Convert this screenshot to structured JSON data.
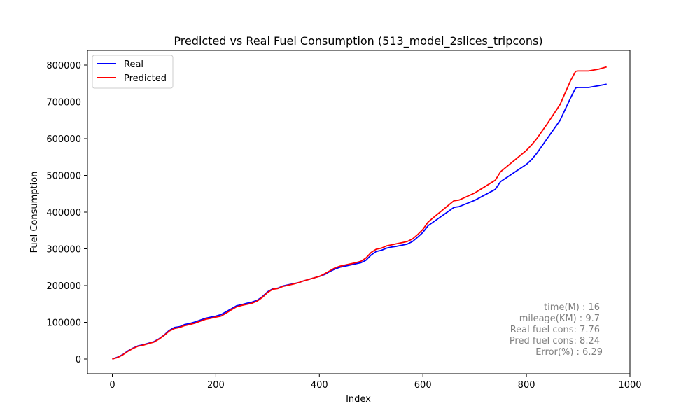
{
  "chart_data": {
    "type": "line",
    "title": "Predicted vs Real Fuel Consumption (513_model_2slices_tripcons)",
    "xlabel": "Index",
    "ylabel": "Fuel Consumption",
    "xlim": [
      -48,
      1000
    ],
    "ylim": [
      -40000,
      840000
    ],
    "x_ticks": [
      0,
      200,
      400,
      600,
      800,
      1000
    ],
    "y_ticks": [
      0,
      100000,
      200000,
      300000,
      400000,
      500000,
      600000,
      700000,
      800000
    ],
    "x_tick_labels": [
      "0",
      "200",
      "400",
      "600",
      "800",
      "1000"
    ],
    "y_tick_labels": [
      "0",
      "100000",
      "200000",
      "300000",
      "400000",
      "500000",
      "600000",
      "700000",
      "800000"
    ],
    "grid": false,
    "legend_position": "top-left",
    "series": [
      {
        "name": "Real",
        "color": "#0000ff",
        "x": [
          0,
          10,
          20,
          30,
          40,
          50,
          60,
          70,
          80,
          90,
          100,
          110,
          120,
          130,
          140,
          150,
          160,
          170,
          180,
          190,
          200,
          210,
          220,
          230,
          240,
          250,
          260,
          270,
          280,
          290,
          300,
          310,
          320,
          330,
          340,
          350,
          360,
          370,
          380,
          390,
          400,
          410,
          420,
          430,
          440,
          450,
          460,
          470,
          480,
          490,
          500,
          510,
          520,
          530,
          540,
          550,
          560,
          570,
          580,
          590,
          600,
          610,
          620,
          640,
          660,
          670,
          700,
          740,
          750,
          800,
          810,
          820,
          840,
          865,
          885,
          895,
          900,
          920,
          940,
          955
        ],
        "y": [
          0,
          5000,
          12000,
          22000,
          30000,
          36000,
          39000,
          43000,
          47000,
          55000,
          65000,
          78000,
          86000,
          88000,
          94000,
          97000,
          101000,
          106000,
          111000,
          114000,
          117000,
          121000,
          129000,
          137000,
          145000,
          148000,
          152000,
          155000,
          160000,
          170000,
          183000,
          191000,
          193000,
          199000,
          202000,
          205000,
          208000,
          213000,
          217000,
          221000,
          225000,
          230000,
          238000,
          245000,
          250000,
          253000,
          256000,
          259000,
          262000,
          269000,
          283000,
          293000,
          296000,
          302000,
          305000,
          307000,
          310000,
          313000,
          320000,
          332000,
          345000,
          363000,
          373000,
          393000,
          413000,
          415000,
          432000,
          462000,
          483000,
          530000,
          543000,
          560000,
          600000,
          650000,
          710000,
          738000,
          739000,
          739000,
          744000,
          748000
        ]
      },
      {
        "name": "Predicted",
        "color": "#ff0000",
        "x": [
          0,
          10,
          20,
          30,
          40,
          50,
          60,
          70,
          80,
          90,
          100,
          110,
          120,
          130,
          140,
          150,
          160,
          170,
          180,
          190,
          200,
          210,
          220,
          230,
          240,
          250,
          260,
          270,
          280,
          290,
          300,
          310,
          320,
          330,
          340,
          350,
          360,
          370,
          380,
          390,
          400,
          410,
          420,
          430,
          440,
          450,
          460,
          470,
          480,
          490,
          500,
          510,
          520,
          530,
          540,
          550,
          560,
          570,
          580,
          590,
          600,
          610,
          620,
          640,
          660,
          670,
          700,
          740,
          750,
          800,
          810,
          820,
          840,
          865,
          885,
          895,
          900,
          920,
          940,
          955
        ],
        "y": [
          0,
          4000,
          11000,
          21000,
          29000,
          35000,
          38000,
          42000,
          46000,
          54000,
          64000,
          76000,
          83000,
          86000,
          91000,
          94000,
          98000,
          103000,
          108000,
          111000,
          114000,
          117000,
          125000,
          134000,
          142000,
          146000,
          149000,
          152000,
          158000,
          168000,
          181000,
          190000,
          192000,
          198000,
          201000,
          204000,
          208000,
          213000,
          217000,
          221000,
          225000,
          232000,
          240000,
          248000,
          253000,
          256000,
          259000,
          262000,
          266000,
          275000,
          290000,
          299000,
          302000,
          308000,
          311000,
          314000,
          317000,
          320000,
          327000,
          339000,
          353000,
          373000,
          385000,
          408000,
          431000,
          433000,
          452000,
          487000,
          510000,
          568000,
          583000,
          600000,
          640000,
          693000,
          757000,
          783000,
          784000,
          784000,
          789000,
          795000
        ]
      }
    ],
    "annotation_lines": [
      "time(M) : 16",
      "mileage(KM) : 9.7",
      "Real fuel cons: 7.76",
      "Pred fuel cons: 8.24",
      "Error(%) : 6.29"
    ]
  }
}
